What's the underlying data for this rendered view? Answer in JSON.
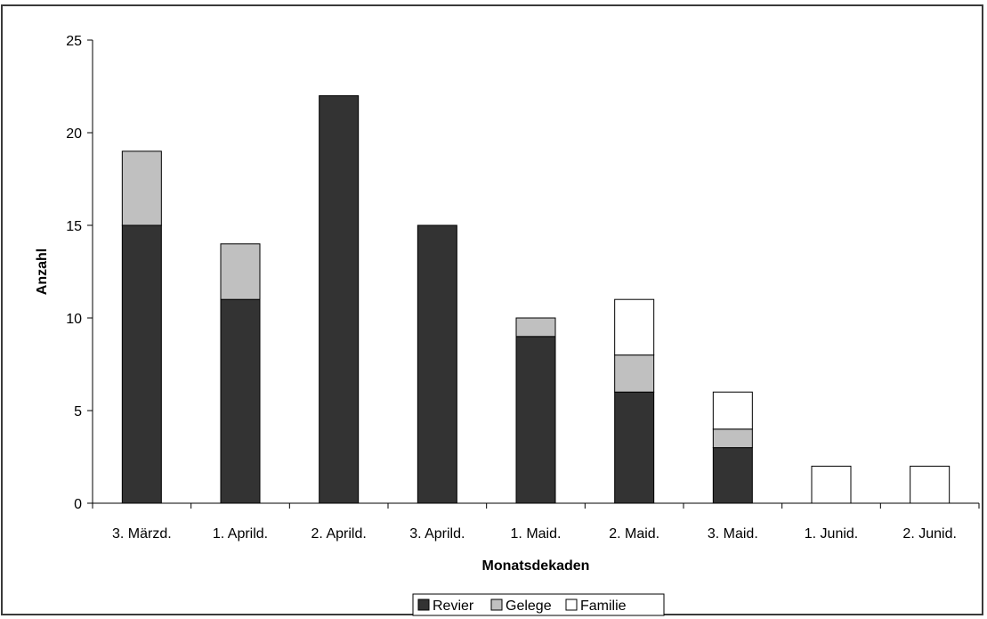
{
  "chart_data": {
    "type": "bar",
    "stacked": true,
    "categories": [
      "3. Märzd.",
      "1. Aprild.",
      "2. Aprild.",
      "3. Aprild.",
      "1. Maid.",
      "2. Maid.",
      "3. Maid.",
      "1. Junid.",
      "2. Junid."
    ],
    "series": [
      {
        "name": "Revier",
        "values": [
          15,
          11,
          22,
          15,
          9,
          6,
          3,
          0,
          0
        ],
        "color": "#333333"
      },
      {
        "name": "Gelege",
        "values": [
          4,
          3,
          0,
          0,
          1,
          2,
          1,
          0,
          0
        ],
        "color": "#c0c0c0"
      },
      {
        "name": "Familie",
        "values": [
          0,
          0,
          0,
          0,
          0,
          3,
          2,
          2,
          2
        ],
        "color": "#ffffff"
      }
    ],
    "xlabel": "Monatsdekaden",
    "ylabel": "Anzahl",
    "ylim": [
      0,
      25
    ],
    "yticks": [
      0,
      5,
      10,
      15,
      20,
      25
    ],
    "grid": false,
    "legend_position": "bottom"
  }
}
